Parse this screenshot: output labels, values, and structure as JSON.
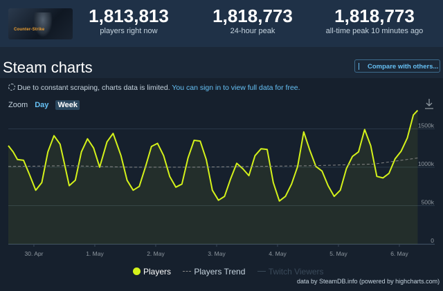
{
  "header": {
    "game_name": "Counter-Strike",
    "stats": [
      {
        "value": "1,813,813",
        "label": "players right now"
      },
      {
        "value": "1,818,773",
        "label": "24-hour peak"
      },
      {
        "value": "1,818,773",
        "label": "all-time peak 10 minutes ago"
      }
    ]
  },
  "page_title": "Steam charts",
  "compare_button": "Compare with others...",
  "notice": {
    "text": "Due to constant scraping, charts data is limited.",
    "link": "You can sign in to view full data for free."
  },
  "zoom": {
    "label": "Zoom",
    "options": [
      "Day",
      "Week"
    ],
    "active": "Week"
  },
  "legend": [
    "Players",
    "Players Trend",
    "Twitch Viewers"
  ],
  "credits": "data by SteamDB.info (powered by highcharts.com)",
  "colors": {
    "players": "#d4f21a",
    "trend": "#888888",
    "twitch": "#3a4a5a"
  },
  "chart_data": {
    "type": "line",
    "x_ticks": [
      "30. Apr",
      "1. May",
      "2. May",
      "3. May",
      "4. May",
      "5. May",
      "6. May"
    ],
    "y_ticks": [
      "0",
      "500k",
      "1000k",
      "1500k"
    ],
    "ylim": [
      0,
      1800000
    ],
    "xlim": [
      0,
      7.0
    ],
    "grid": true,
    "legend_position": "bottom",
    "series": [
      {
        "name": "Players",
        "x": [
          0,
          0.08,
          0.15,
          0.25,
          0.35,
          0.45,
          0.55,
          0.65,
          0.75,
          0.85,
          0.92,
          1.0,
          1.1,
          1.2,
          1.3,
          1.4,
          1.5,
          1.62,
          1.72,
          1.85,
          1.95,
          2.05,
          2.15,
          2.25,
          2.35,
          2.45,
          2.55,
          2.65,
          2.75,
          2.85,
          2.95,
          3.05,
          3.15,
          3.25,
          3.35,
          3.45,
          3.55,
          3.65,
          3.75,
          3.85,
          3.95,
          4.05,
          4.15,
          4.25,
          4.35,
          4.45,
          4.55,
          4.65,
          4.75,
          4.85,
          4.95,
          5.05,
          5.15,
          5.25,
          5.35,
          5.45,
          5.55,
          5.65,
          5.75,
          5.85,
          5.95,
          6.05,
          6.15,
          6.25,
          6.35,
          6.45,
          6.55,
          6.65,
          6.72
        ],
        "values": [
          1280000,
          1200000,
          1100000,
          1090000,
          900000,
          700000,
          800000,
          1200000,
          1410000,
          1300000,
          1050000,
          760000,
          830000,
          1200000,
          1370000,
          1250000,
          1000000,
          1330000,
          1440000,
          1150000,
          830000,
          700000,
          750000,
          1000000,
          1270000,
          1310000,
          1150000,
          880000,
          740000,
          780000,
          1120000,
          1350000,
          1340000,
          1100000,
          700000,
          570000,
          620000,
          850000,
          1050000,
          980000,
          890000,
          1150000,
          1240000,
          1230000,
          800000,
          560000,
          620000,
          780000,
          1010000,
          1460000,
          1220000,
          1010000,
          950000,
          760000,
          620000,
          700000,
          980000,
          1140000,
          1200000,
          1490000,
          1280000,
          880000,
          860000,
          920000,
          1110000,
          1210000,
          1380000,
          1680000,
          1740000
        ]
      },
      {
        "name": "Players Trend",
        "x": [
          0,
          1,
          2,
          3,
          4,
          5,
          6,
          6.72
        ],
        "values": [
          1010000,
          1020000,
          1000000,
          1000000,
          1010000,
          1020000,
          1040000,
          1120000
        ]
      }
    ]
  }
}
